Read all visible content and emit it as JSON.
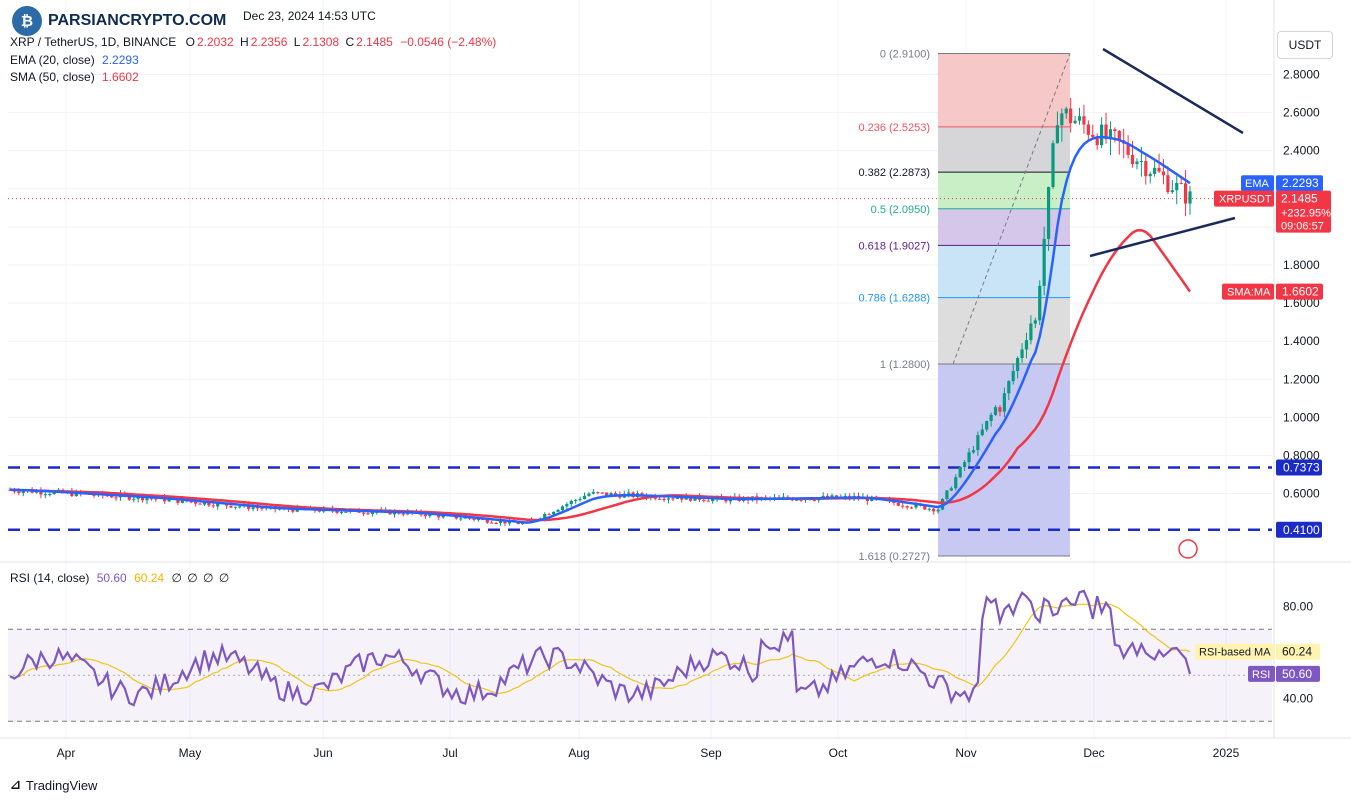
{
  "watermark": {
    "text": "PARSIANCRYPTO.COM",
    "icon": "bitcoin-logo-icon"
  },
  "header": {
    "date": "Dec 23, 2024 14:53 UTC",
    "symbol": "XRP / TetherUS, 1D, BINANCE",
    "o_label": "O",
    "o": "2.2032",
    "h_label": "H",
    "h": "2.2356",
    "l_label": "L",
    "l": "2.1308",
    "c_label": "C",
    "c": "2.1485",
    "change": "−0.0546 (−2.48%)",
    "ema_label": "EMA (20, close)",
    "ema": "2.2293",
    "sma_label": "SMA (50, close)",
    "sma": "1.6602",
    "rsi_label": "RSI (14, close)",
    "rsi": "50.60",
    "rsi_ma": "60.24",
    "rsi_extra": [
      "∅",
      "∅",
      "∅",
      "∅"
    ]
  },
  "axis_unit": "USDT",
  "footer": {
    "brand": "TradingView"
  },
  "chart_data": {
    "type": "line",
    "price_axis": {
      "ticks": [
        0.6,
        0.8,
        1.0,
        1.2,
        1.4,
        1.6,
        1.8,
        2.0,
        2.2,
        2.4,
        2.6,
        2.8
      ],
      "tick_labels": [
        "0.6000",
        "0.8000",
        "1.0000",
        "1.2000",
        "1.4000",
        "1.6000",
        "1.8000",
        "2.0000",
        "2.2000",
        "2.4000",
        "2.6000",
        "2.8000"
      ]
    },
    "time_axis": {
      "labels": [
        "Apr",
        "May",
        "Jun",
        "Jul",
        "Aug",
        "Sep",
        "Oct",
        "Nov",
        "Dec",
        "2025"
      ]
    },
    "series": [
      {
        "name": "EMA (20, close)",
        "color": "#2962ff",
        "last": 2.2293
      },
      {
        "name": "SMA (50, close)",
        "color": "#f23645",
        "last": 1.6602
      }
    ],
    "fibonacci": [
      {
        "level": "0",
        "price": 2.91,
        "label": "0 (2.9100)",
        "color": "#787b86"
      },
      {
        "level": "0.236",
        "price": 2.5253,
        "label": "0.236 (2.5253)",
        "color": "#f7525f"
      },
      {
        "level": "0.382",
        "price": 2.2873,
        "label": "0.382 (2.2873)",
        "color": "#131722"
      },
      {
        "level": "0.5",
        "price": 2.095,
        "label": "0.5 (2.0950)",
        "color": "#22ab94"
      },
      {
        "level": "0.618",
        "price": 1.9027,
        "label": "0.618 (1.9027)",
        "color": "#5b1e8c"
      },
      {
        "level": "0.786",
        "price": 1.6288,
        "label": "0.786 (1.6288)",
        "color": "#2196f3"
      },
      {
        "level": "1",
        "price": 1.28,
        "label": "1 (1.2800)",
        "color": "#787b86"
      },
      {
        "level": "1.618",
        "price": 0.2727,
        "label": "1.618 (0.2727)",
        "color": "#787b86"
      }
    ],
    "horizontal_levels": [
      {
        "price": 0.7373,
        "label": "0.7373"
      },
      {
        "price": 0.41,
        "label": "0.4100"
      }
    ],
    "price_tags": [
      {
        "name": "EMA",
        "value": "2.2293",
        "color": "#2962ff"
      },
      {
        "name": "XRPUSDT",
        "value": "2.1485",
        "change": "+232.95%",
        "countdown": "09:06:57",
        "color": "#f23645"
      },
      {
        "name": "SMA:MA",
        "value": "1.6602",
        "color": "#f23645"
      }
    ],
    "rsi": {
      "ticks": [
        40,
        80
      ],
      "tick_labels": [
        "40.00",
        "80.00"
      ],
      "upper": 70,
      "mid": 50,
      "lower": 30,
      "value": 50.6,
      "ma_value": 60.24,
      "tags": [
        {
          "name": "RSI-based MA",
          "value": "60.24"
        },
        {
          "name": "RSI",
          "value": "50.60"
        }
      ]
    }
  }
}
